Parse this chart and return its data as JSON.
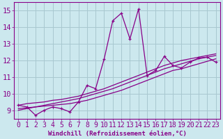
{
  "xlabel": "Windchill (Refroidissement éolien,°C)",
  "xlim": [
    -0.5,
    23.5
  ],
  "ylim": [
    8.5,
    15.5
  ],
  "xticks": [
    0,
    1,
    2,
    3,
    4,
    5,
    6,
    7,
    8,
    9,
    10,
    11,
    12,
    13,
    14,
    15,
    16,
    17,
    18,
    19,
    20,
    21,
    22,
    23
  ],
  "yticks": [
    9,
    10,
    11,
    12,
    13,
    14,
    15
  ],
  "bg_color": "#cce8ee",
  "grid_color": "#a8c8d0",
  "line_color": "#880088",
  "series_wiggly": [
    9.3,
    9.2,
    8.7,
    9.0,
    9.2,
    9.1,
    8.9,
    9.5,
    10.5,
    10.3,
    12.1,
    14.4,
    14.85,
    13.3,
    15.1,
    11.1,
    11.4,
    12.25,
    11.7,
    11.55,
    11.9,
    12.15,
    12.2,
    11.9
  ],
  "series_trend1": [
    9.1,
    9.15,
    9.2,
    9.25,
    9.3,
    9.35,
    9.4,
    9.5,
    9.6,
    9.75,
    9.9,
    10.05,
    10.2,
    10.4,
    10.6,
    10.8,
    11.0,
    11.2,
    11.4,
    11.5,
    11.65,
    11.8,
    11.95,
    12.1
  ],
  "series_trend2": [
    9.0,
    9.1,
    9.2,
    9.3,
    9.4,
    9.5,
    9.6,
    9.7,
    9.85,
    10.0,
    10.15,
    10.3,
    10.5,
    10.7,
    10.9,
    11.1,
    11.3,
    11.5,
    11.65,
    11.8,
    11.95,
    12.1,
    12.2,
    12.3
  ],
  "series_trend3": [
    9.3,
    9.4,
    9.45,
    9.5,
    9.6,
    9.65,
    9.75,
    9.85,
    10.0,
    10.15,
    10.3,
    10.5,
    10.7,
    10.9,
    11.1,
    11.3,
    11.5,
    11.7,
    11.85,
    12.0,
    12.1,
    12.2,
    12.3,
    12.4
  ],
  "font_size_xlabel": 6.5,
  "font_size_ticks": 7
}
